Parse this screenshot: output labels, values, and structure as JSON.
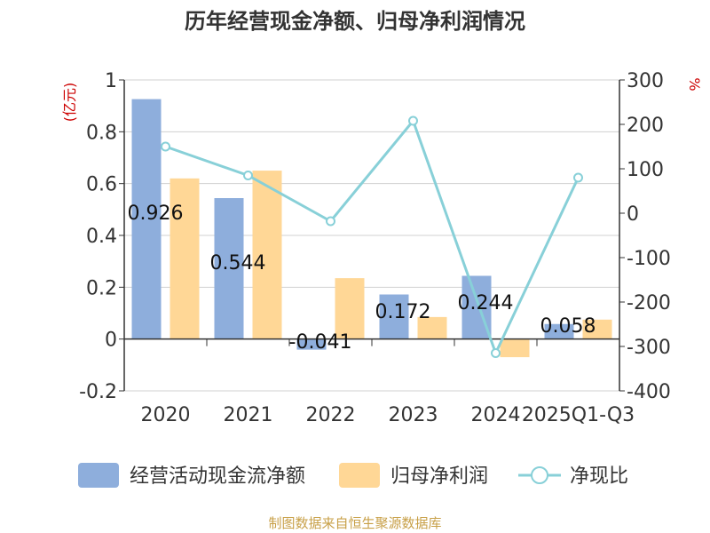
{
  "chart_data": {
    "type": "bar",
    "title": "历年经营现金净额、归母净利润情况",
    "categories": [
      "2020",
      "2021",
      "2022",
      "2023",
      "2024",
      "2025Q1-Q3"
    ],
    "series": [
      {
        "name": "经营活动现金流净额",
        "type": "bar",
        "axis": "left",
        "color": "#8eaedc",
        "values": [
          0.926,
          0.544,
          -0.041,
          0.172,
          0.244,
          0.058
        ],
        "labels": [
          "0.926",
          "0.544",
          "-0.041",
          "0.172",
          "0.244",
          "0.058"
        ]
      },
      {
        "name": "归母净利润",
        "type": "bar",
        "axis": "left",
        "color": "#ffd796",
        "values": [
          0.62,
          0.65,
          0.235,
          0.085,
          -0.07,
          0.075
        ]
      },
      {
        "name": "净现比",
        "type": "line",
        "axis": "right",
        "color": "#88d0d8",
        "values": [
          150,
          85,
          -18,
          208,
          -315,
          80
        ]
      }
    ],
    "left_axis": {
      "unit": "(亿元)",
      "min": -0.2,
      "max": 1,
      "ticks": [
        "1",
        "0.8",
        "0.6",
        "0.4",
        "0.2",
        "0",
        "-0.2"
      ],
      "tick_values": [
        1,
        0.8,
        0.6,
        0.4,
        0.2,
        0,
        -0.2
      ]
    },
    "right_axis": {
      "unit": "%",
      "min": -400,
      "max": 300,
      "ticks": [
        "300",
        "200",
        "100",
        "0",
        "-100",
        "-200",
        "-300",
        "-400"
      ],
      "tick_values": [
        300,
        200,
        100,
        0,
        -100,
        -200,
        -300,
        -400
      ]
    },
    "grid": true,
    "legend_position": "bottom"
  },
  "source": "制图数据来自恒生聚源数据库"
}
